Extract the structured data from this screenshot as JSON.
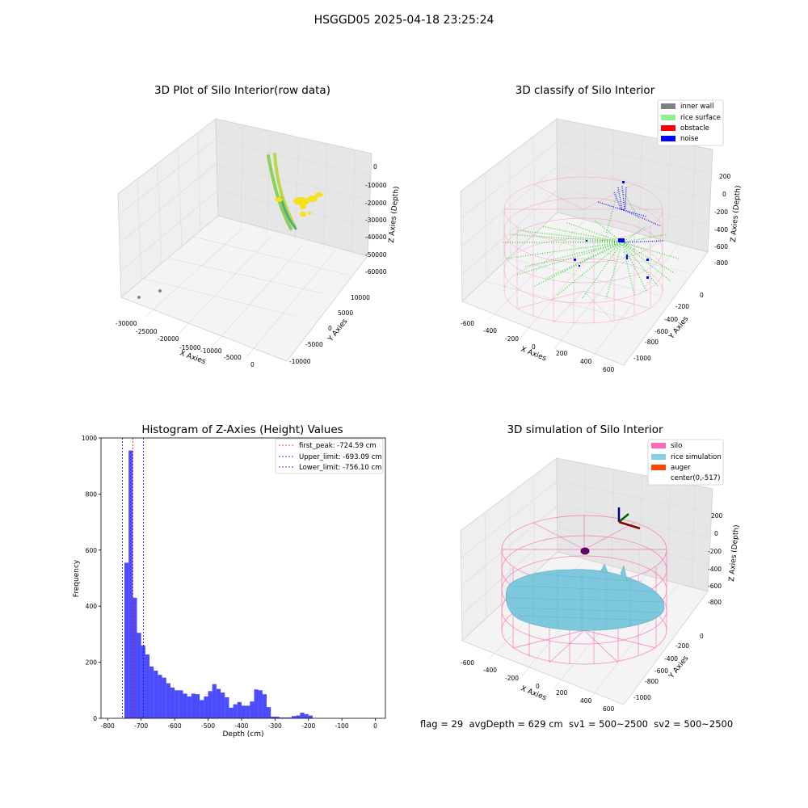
{
  "suptitle": "HSGGD05 2025-04-18 23:25:24",
  "footer": "flag = 29  avgDepth = 629 cm  sv1 = 500~2500  sv2 = 500~2500",
  "panels": {
    "raw": {
      "title": "3D Plot of Silo Interior(row data)",
      "xlabel": "X Axies",
      "ylabel": "Y Axies",
      "zlabel": "Z Axies (Depth)",
      "xticks": [
        "-30000",
        "-25000",
        "-20000",
        "-15000",
        "-10000",
        "-5000",
        "0"
      ],
      "yticks": [
        "-10000",
        "-5000",
        "0",
        "5000",
        "10000"
      ],
      "zticks": [
        "0",
        "-10000",
        "-20000",
        "-30000",
        "-40000",
        "-50000",
        "-60000"
      ]
    },
    "classify": {
      "title": "3D classify of Silo Interior",
      "xlabel": "X Axies",
      "ylabel": "Y Axies",
      "zlabel": "Z Axies (Depth)",
      "xticks": [
        "-600",
        "-400",
        "-200",
        "0",
        "200",
        "400",
        "600"
      ],
      "yticks": [
        "-1000",
        "-800",
        "-600",
        "-400",
        "-200",
        "0"
      ],
      "zticks": [
        "200",
        "0",
        "-200",
        "-400",
        "-600",
        "-800"
      ],
      "legend": [
        {
          "label": "inner wall",
          "color": "#808080"
        },
        {
          "label": "rice surface",
          "color": "#90ee90"
        },
        {
          "label": "obstacle",
          "color": "#ff0000"
        },
        {
          "label": "noise",
          "color": "#0000ff"
        }
      ]
    },
    "simulation": {
      "title": "3D simulation of Silo Interior",
      "xlabel": "X Axies",
      "ylabel": "Y Axies",
      "zlabel": "Z Axies (Depth)",
      "xticks": [
        "-600",
        "-400",
        "-200",
        "0",
        "200",
        "400",
        "600"
      ],
      "yticks": [
        "-1000",
        "-800",
        "-600",
        "-400",
        "-200",
        "0"
      ],
      "zticks": [
        "200",
        "0",
        "-200",
        "-400",
        "-600",
        "-800"
      ],
      "legend": [
        {
          "label": "silo",
          "color": "#ff69b4"
        },
        {
          "label": "rice simulation",
          "color": "#87ceeb"
        },
        {
          "label": "auger",
          "color": "#ff4500"
        },
        {
          "label": "center(0,-517)",
          "color": ""
        }
      ]
    }
  },
  "chart_data": {
    "type": "bar",
    "title": "Histogram of Z-Axies (Height) Values",
    "xlabel": "Depth (cm)",
    "ylabel": "Frequency",
    "xlim": [
      -820,
      30
    ],
    "ylim": [
      0,
      1000
    ],
    "xticks": [
      -800,
      -700,
      -600,
      -500,
      -400,
      -300,
      -200,
      -100,
      0
    ],
    "yticks": [
      0,
      200,
      400,
      600,
      800,
      1000
    ],
    "bin_width": 12.5,
    "bins_start": [
      -750,
      -737.5,
      -725,
      -712.5,
      -700,
      -687.5,
      -675,
      -662.5,
      -650,
      -637.5,
      -625,
      -612.5,
      -600,
      -587.5,
      -575,
      -562.5,
      -550,
      -537.5,
      -525,
      -512.5,
      -500,
      -487.5,
      -475,
      -462.5,
      -450,
      -437.5,
      -425,
      -412.5,
      -400,
      -387.5,
      -375,
      -362.5,
      -350,
      -337.5,
      -325,
      -312.5,
      -300,
      -287.5,
      -275,
      -262.5,
      -250,
      -237.5,
      -225,
      -212.5,
      -200,
      -187.5,
      -175,
      -162.5,
      -150,
      -137.5,
      -125,
      -112.5,
      -100,
      -87.5,
      -75,
      -62.5,
      -50,
      -37.5,
      -25,
      -12.5
    ],
    "values": [
      555,
      955,
      430,
      305,
      260,
      228,
      185,
      170,
      155,
      145,
      125,
      110,
      100,
      100,
      88,
      78,
      88,
      86,
      65,
      78,
      97,
      122,
      105,
      92,
      75,
      38,
      50,
      58,
      45,
      45,
      60,
      103,
      100,
      86,
      40,
      6,
      6,
      3,
      3,
      3,
      8,
      10,
      20,
      15,
      10,
      0,
      0,
      0,
      0,
      0,
      0,
      0,
      0,
      0,
      0,
      0,
      0,
      0,
      0,
      0
    ],
    "bar_color": "#0000ff",
    "vlines": [
      {
        "label": "first_peak: -724.59 cm",
        "x": -724.59,
        "color": "#ff0000"
      },
      {
        "label": "Upper_limit: -693.09 cm",
        "x": -693.09,
        "color": "#0000ff"
      },
      {
        "label": "Lower_limit: -756.10 cm",
        "x": -756.1,
        "color": "#0000ff"
      }
    ],
    "legend_position": "top-right"
  }
}
